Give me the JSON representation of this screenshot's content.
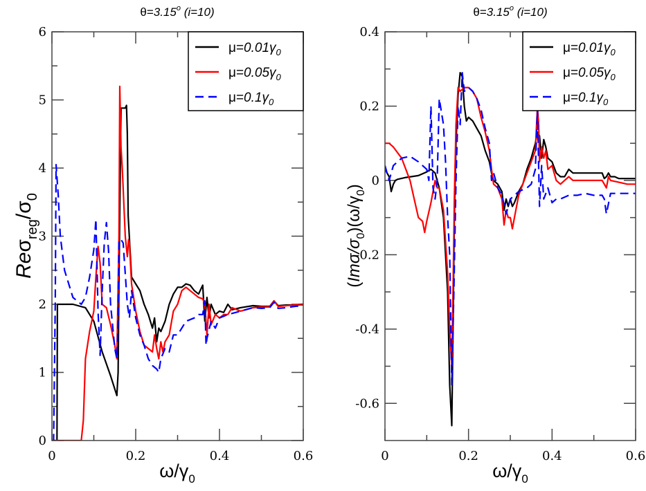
{
  "chart_data": [
    {
      "type": "line",
      "title": "θ=3.15° (i=10)",
      "title_parts": {
        "theta": "θ=",
        "value": "3.15",
        "deg": "o",
        "index": " (i=10)"
      },
      "xlabel": "ω/γ0",
      "xlabel_parts": {
        "main": "ω/γ",
        "sub": "0"
      },
      "ylabel": "Reσreg/σ0",
      "ylabel_parts": {
        "re": "Re",
        "sigma": "σ",
        "sub1": "reg",
        "slash": "/σ",
        "sub2": "0"
      },
      "xlim": [
        0,
        0.6
      ],
      "ylim": [
        0,
        6
      ],
      "xticks": [
        0,
        0.2,
        0.4,
        0.6
      ],
      "xtick_labels": [
        "0",
        "0.2",
        "0.4",
        "0.6"
      ],
      "xminor": [
        0.1,
        0.3,
        0.5
      ],
      "yticks": [
        0,
        1,
        2,
        3,
        4,
        5,
        6
      ],
      "ytick_labels": [
        "0",
        "1",
        "2",
        "3",
        "4",
        "5",
        "6"
      ],
      "yminor": [
        0.5,
        1.5,
        2.5,
        3.5,
        4.5,
        5.5
      ],
      "legend_position": "top-right",
      "series": [
        {
          "name": "μ=0.01γ0",
          "label_parts": {
            "mu": "μ=",
            "val": "0.01γ",
            "sub": "0"
          },
          "color": "#000000",
          "dash": "solid",
          "x": [
            0,
            0.012,
            0.013,
            0.02,
            0.05,
            0.08,
            0.1,
            0.12,
            0.14,
            0.155,
            0.158,
            0.16,
            0.165,
            0.168,
            0.175,
            0.178,
            0.18,
            0.182,
            0.19,
            0.2,
            0.21,
            0.22,
            0.23,
            0.24,
            0.245,
            0.25,
            0.255,
            0.26,
            0.27,
            0.28,
            0.29,
            0.3,
            0.31,
            0.32,
            0.33,
            0.34,
            0.35,
            0.36,
            0.365,
            0.37,
            0.375,
            0.38,
            0.39,
            0.4,
            0.41,
            0.42,
            0.43,
            0.45,
            0.48,
            0.5,
            0.52,
            0.53,
            0.54,
            0.56,
            0.58,
            0.6
          ],
          "y": [
            0,
            0,
            2.0,
            2.0,
            2.0,
            1.95,
            1.75,
            1.3,
            0.95,
            0.66,
            1.0,
            2.3,
            4.88,
            4.88,
            4.88,
            4.92,
            4.5,
            3.3,
            2.4,
            2.3,
            2.2,
            2.0,
            1.85,
            1.65,
            1.8,
            1.45,
            1.65,
            1.6,
            1.75,
            2.0,
            2.15,
            2.25,
            2.25,
            2.3,
            2.28,
            2.2,
            2.15,
            2.28,
            1.75,
            2.1,
            1.8,
            2.0,
            1.85,
            1.9,
            1.88,
            2.0,
            1.92,
            1.95,
            1.98,
            1.97,
            1.97,
            2.05,
            1.98,
            1.99,
            1.99,
            2.0
          ]
        },
        {
          "name": "μ=0.05γ0",
          "label_parts": {
            "mu": "μ=",
            "val": "0.05γ",
            "sub": "0"
          },
          "color": "#ff0000",
          "dash": "solid",
          "x": [
            0,
            0.07,
            0.075,
            0.08,
            0.09,
            0.1,
            0.105,
            0.11,
            0.115,
            0.12,
            0.13,
            0.14,
            0.15,
            0.155,
            0.16,
            0.162,
            0.165,
            0.168,
            0.17,
            0.175,
            0.18,
            0.183,
            0.185,
            0.19,
            0.195,
            0.2,
            0.21,
            0.22,
            0.23,
            0.24,
            0.245,
            0.25,
            0.255,
            0.26,
            0.265,
            0.27,
            0.28,
            0.29,
            0.3,
            0.31,
            0.32,
            0.33,
            0.34,
            0.35,
            0.36,
            0.365,
            0.37,
            0.375,
            0.38,
            0.39,
            0.4,
            0.41,
            0.42,
            0.43,
            0.45,
            0.48,
            0.5,
            0.52,
            0.53,
            0.54,
            0.56,
            0.58,
            0.6
          ],
          "y": [
            0,
            0,
            0.3,
            1.2,
            1.6,
            1.9,
            2.4,
            2.85,
            2.6,
            2.0,
            1.95,
            1.7,
            1.4,
            1.2,
            3.0,
            5.2,
            4.3,
            4.0,
            3.7,
            3.0,
            2.7,
            2.95,
            2.9,
            2.3,
            2.1,
            1.9,
            1.6,
            1.4,
            1.35,
            1.3,
            1.55,
            1.35,
            1.2,
            1.45,
            1.3,
            1.45,
            1.55,
            1.9,
            2.0,
            2.2,
            2.25,
            2.2,
            2.15,
            2.1,
            2.08,
            2.0,
            1.55,
            2.0,
            1.7,
            1.85,
            1.8,
            1.85,
            1.85,
            1.95,
            1.9,
            1.95,
            1.96,
            1.96,
            2.05,
            1.97,
            1.98,
            1.99,
            1.99
          ]
        },
        {
          "name": "μ=0.1γ0",
          "label_parts": {
            "mu": "μ=",
            "val": "0.1γ",
            "sub": "0"
          },
          "color": "#0000ff",
          "dash": "dashed",
          "x": [
            0,
            0.004,
            0.008,
            0.01,
            0.015,
            0.02,
            0.03,
            0.05,
            0.07,
            0.08,
            0.09,
            0.1,
            0.105,
            0.11,
            0.115,
            0.12,
            0.125,
            0.13,
            0.135,
            0.14,
            0.15,
            0.155,
            0.158,
            0.16,
            0.165,
            0.17,
            0.18,
            0.185,
            0.19,
            0.2,
            0.21,
            0.22,
            0.23,
            0.24,
            0.25,
            0.255,
            0.26,
            0.27,
            0.28,
            0.29,
            0.3,
            0.32,
            0.34,
            0.35,
            0.36,
            0.365,
            0.368,
            0.37,
            0.38,
            0.39,
            0.4,
            0.42,
            0.45,
            0.48,
            0.5,
            0.52,
            0.53,
            0.54,
            0.56,
            0.58,
            0.6
          ],
          "y": [
            0,
            0,
            2.0,
            4.05,
            3.6,
            3.0,
            2.5,
            2.1,
            2.0,
            2.1,
            2.4,
            2.8,
            3.25,
            1.9,
            1.25,
            2.2,
            2.9,
            3.2,
            2.8,
            2.0,
            1.35,
            1.2,
            1.8,
            2.95,
            2.95,
            2.9,
            2.0,
            1.8,
            2.2,
            1.8,
            1.55,
            1.4,
            1.2,
            1.1,
            1.05,
            1.0,
            1.2,
            1.35,
            1.3,
            1.55,
            1.55,
            1.75,
            1.8,
            1.85,
            1.85,
            2.05,
            1.4,
            1.5,
            1.75,
            1.65,
            1.8,
            1.85,
            1.9,
            1.95,
            1.94,
            1.95,
            2.03,
            1.94,
            1.95,
            1.97,
            1.98
          ]
        }
      ]
    },
    {
      "type": "line",
      "title": "θ=3.15° (i=10)",
      "title_parts": {
        "theta": "θ=",
        "value": "3.15",
        "deg": "o",
        "index": " (i=10)"
      },
      "xlabel": "ω/γ0",
      "xlabel_parts": {
        "main": "ω/γ",
        "sub": "0"
      },
      "ylabel": "(Imσ/σ0)(ω/γ0)",
      "ylabel_parts": {
        "open": "(",
        "im": "Imσ/σ",
        "sub1": "0",
        "mid": ")(ω/γ",
        "sub2": "0",
        "close": ")"
      },
      "xlim": [
        0,
        0.6
      ],
      "ylim": [
        -0.7,
        0.4
      ],
      "xticks": [
        0,
        0.2,
        0.4,
        0.6
      ],
      "xtick_labels": [
        "0",
        "0.2",
        "0.4",
        "0.6"
      ],
      "xminor": [
        0.1,
        0.3,
        0.5
      ],
      "yticks": [
        -0.6,
        -0.4,
        -0.2,
        0,
        0.2,
        0.4
      ],
      "ytick_labels": [
        "-0.6",
        "-0.4",
        "-0.2",
        "0",
        "0.2",
        "0.4"
      ],
      "yminor": [
        -0.5,
        -0.3,
        -0.1,
        0.1,
        0.3
      ],
      "legend_position": "top-right",
      "series": [
        {
          "name": "μ=0.01γ0",
          "label_parts": {
            "mu": "μ=",
            "val": "0.01γ",
            "sub": "0"
          },
          "color": "#000000",
          "dash": "solid",
          "x": [
            0,
            0.01,
            0.015,
            0.02,
            0.025,
            0.03,
            0.05,
            0.08,
            0.1,
            0.11,
            0.12,
            0.13,
            0.14,
            0.15,
            0.155,
            0.16,
            0.163,
            0.166,
            0.17,
            0.175,
            0.18,
            0.185,
            0.19,
            0.195,
            0.2,
            0.21,
            0.22,
            0.23,
            0.24,
            0.25,
            0.255,
            0.26,
            0.27,
            0.28,
            0.285,
            0.29,
            0.295,
            0.3,
            0.305,
            0.31,
            0.32,
            0.33,
            0.34,
            0.35,
            0.36,
            0.365,
            0.37,
            0.375,
            0.38,
            0.385,
            0.39,
            0.4,
            0.41,
            0.42,
            0.43,
            0.44,
            0.45,
            0.48,
            0.5,
            0.52,
            0.525,
            0.53,
            0.535,
            0.54,
            0.55,
            0.56,
            0.57,
            0.58,
            0.6
          ],
          "y": [
            0.03,
            0.01,
            -0.03,
            -0.01,
            0.0,
            0.003,
            0.008,
            0.013,
            0.023,
            0.03,
            0.02,
            -0.02,
            -0.1,
            -0.3,
            -0.55,
            -0.66,
            -0.4,
            -0.1,
            0.1,
            0.23,
            0.29,
            0.28,
            0.2,
            0.16,
            0.17,
            0.16,
            0.14,
            0.12,
            0.08,
            0.05,
            0.02,
            0.0,
            -0.01,
            -0.03,
            -0.08,
            -0.05,
            -0.07,
            -0.05,
            -0.07,
            -0.06,
            -0.03,
            -0.01,
            0.03,
            0.06,
            0.1,
            0.13,
            0.12,
            0.06,
            0.11,
            0.09,
            0.06,
            0.05,
            0.02,
            0.01,
            0.01,
            0.03,
            0.02,
            0.02,
            0.02,
            0.02,
            0.005,
            0.01,
            0.02,
            0.01,
            0.01,
            0.005,
            0.005,
            0.005,
            0.005
          ]
        },
        {
          "name": "μ=0.05γ0",
          "label_parts": {
            "mu": "μ=",
            "val": "0.05γ",
            "sub": "0"
          },
          "color": "#ff0000",
          "dash": "solid",
          "x": [
            0,
            0.01,
            0.02,
            0.04,
            0.06,
            0.07,
            0.08,
            0.09,
            0.095,
            0.1,
            0.11,
            0.12,
            0.125,
            0.13,
            0.14,
            0.15,
            0.155,
            0.16,
            0.163,
            0.166,
            0.17,
            0.175,
            0.18,
            0.19,
            0.2,
            0.21,
            0.22,
            0.23,
            0.24,
            0.25,
            0.255,
            0.26,
            0.27,
            0.28,
            0.285,
            0.29,
            0.295,
            0.3,
            0.305,
            0.31,
            0.32,
            0.33,
            0.34,
            0.35,
            0.36,
            0.365,
            0.368,
            0.37,
            0.375,
            0.38,
            0.385,
            0.39,
            0.4,
            0.41,
            0.42,
            0.43,
            0.44,
            0.45,
            0.48,
            0.5,
            0.52,
            0.525,
            0.53,
            0.535,
            0.54,
            0.56,
            0.58,
            0.6
          ],
          "y": [
            0.1,
            0.1,
            0.09,
            0.06,
            0.0,
            -0.05,
            -0.1,
            -0.11,
            -0.14,
            -0.11,
            -0.06,
            0.0,
            -0.02,
            -0.02,
            -0.08,
            -0.25,
            -0.4,
            -0.5,
            -0.3,
            -0.05,
            0.15,
            0.25,
            0.24,
            0.25,
            0.25,
            0.24,
            0.22,
            0.17,
            0.13,
            0.08,
            0.03,
            -0.01,
            -0.02,
            -0.05,
            -0.12,
            -0.08,
            -0.1,
            -0.1,
            -0.13,
            -0.1,
            -0.04,
            -0.01,
            0.02,
            0.05,
            0.08,
            0.2,
            0.15,
            0.05,
            0.09,
            0.06,
            0.08,
            0.03,
            0.04,
            0.0,
            -0.01,
            0.0,
            0.01,
            0.0,
            0.0,
            0.0,
            0.0,
            -0.01,
            -0.02,
            0.01,
            0.0,
            -0.005,
            -0.01,
            -0.01
          ]
        },
        {
          "name": "μ=0.1γ0",
          "label_parts": {
            "mu": "μ=",
            "val": "0.1γ",
            "sub": "0"
          },
          "color": "#0000ff",
          "dash": "dashed",
          "x": [
            0,
            0.005,
            0.01,
            0.02,
            0.04,
            0.06,
            0.08,
            0.1,
            0.105,
            0.11,
            0.115,
            0.12,
            0.125,
            0.13,
            0.14,
            0.145,
            0.15,
            0.155,
            0.16,
            0.165,
            0.17,
            0.175,
            0.18,
            0.185,
            0.19,
            0.2,
            0.21,
            0.22,
            0.23,
            0.24,
            0.25,
            0.255,
            0.26,
            0.27,
            0.28,
            0.29,
            0.3,
            0.32,
            0.34,
            0.35,
            0.36,
            0.365,
            0.37,
            0.375,
            0.38,
            0.39,
            0.4,
            0.41,
            0.42,
            0.44,
            0.46,
            0.48,
            0.5,
            0.52,
            0.525,
            0.53,
            0.54,
            0.56,
            0.58,
            0.6
          ],
          "y": [
            0.04,
            0.02,
            0.0,
            0.04,
            0.06,
            0.065,
            0.05,
            0.03,
            0.0,
            0.2,
            -0.02,
            -0.05,
            0.0,
            0.22,
            0.15,
            0.05,
            -0.1,
            -0.2,
            -0.55,
            -0.3,
            0.0,
            0.2,
            0.15,
            0.29,
            0.24,
            0.25,
            0.24,
            0.22,
            0.19,
            0.14,
            0.1,
            0.0,
            0.02,
            -0.02,
            -0.04,
            -0.09,
            -0.05,
            -0.03,
            -0.02,
            -0.01,
            0.03,
            0.19,
            -0.07,
            0.04,
            -0.05,
            -0.02,
            -0.06,
            -0.05,
            -0.05,
            -0.04,
            -0.04,
            -0.035,
            -0.04,
            -0.04,
            -0.05,
            -0.09,
            -0.035,
            -0.035,
            -0.035,
            -0.035
          ]
        }
      ]
    }
  ]
}
